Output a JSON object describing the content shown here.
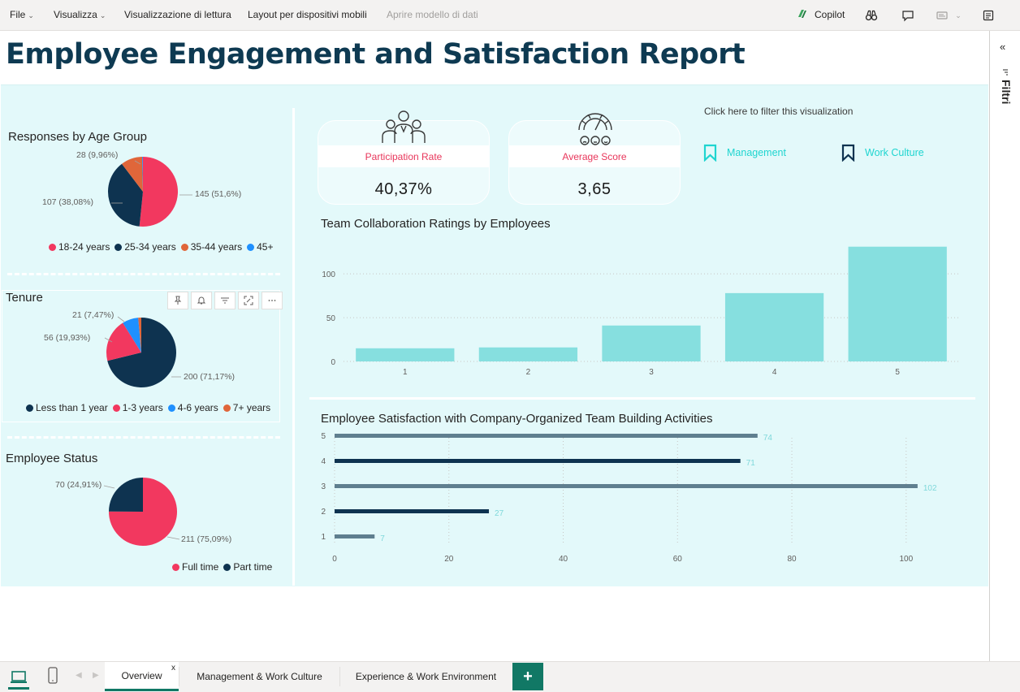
{
  "menu": {
    "file": "File",
    "view": "Visualizza",
    "reading_view": "Visualizzazione di lettura",
    "mobile_layout": "Layout per dispositivi mobili",
    "open_model": "Aprire modello di dati",
    "copilot": "Copilot"
  },
  "report": {
    "title": "Employee Engagement and Satisfaction Report"
  },
  "filters_pane": {
    "label": "Filtri",
    "collapse_glyph": "«"
  },
  "age_chart": {
    "title": "Responses by Age Group",
    "labels": [
      "28 (9,96%)",
      "107 (38,08%)",
      "145 (51,6%)"
    ],
    "legend": [
      "18-24 years",
      "25-34 years",
      "35-44 years",
      "45+"
    ],
    "colors": [
      "#f2385f",
      "#0e3350",
      "#e0663a",
      "#1e90ff"
    ]
  },
  "tenure_chart": {
    "title": "Tenure",
    "labels": [
      "21 (7,47%)",
      "56 (19,93%)",
      "200 (71,17%)"
    ],
    "legend": [
      "Less than 1 year",
      "1-3 years",
      "4-6 years",
      "7+ years"
    ],
    "colors": [
      "#0e3350",
      "#f2385f",
      "#1e90ff",
      "#e0663a"
    ]
  },
  "status_chart": {
    "title": "Employee Status",
    "labels": [
      "70 (24,91%)",
      "211 (75,09%)"
    ],
    "legend": [
      "Full time",
      "Part time"
    ],
    "colors": [
      "#f2385f",
      "#0e3350"
    ]
  },
  "kpis": {
    "participation_label": "Participation Rate",
    "participation_value": "40,37%",
    "average_label": "Average Score",
    "average_value": "3,65"
  },
  "filter_hint": "Click here to filter this visualization",
  "bookmarks": {
    "management": "Management",
    "work_culture": "Work Culture",
    "management_color": "#1fd5d0",
    "work_culture_color": "#0e3350"
  },
  "chart_data": [
    {
      "type": "bar",
      "title": "Team Collaboration Ratings by Employees",
      "categories": [
        "1",
        "2",
        "3",
        "4",
        "5"
      ],
      "values": [
        15,
        16,
        41,
        78,
        131
      ],
      "ylim": [
        0,
        140
      ],
      "yticks": [
        "0",
        "50",
        "100"
      ],
      "color": "#86dfdf",
      "grid": true
    },
    {
      "type": "bar",
      "orientation": "horizontal",
      "title": "Employee Satisfaction with Company-Organized Team Building Activities",
      "categories": [
        "1",
        "2",
        "3",
        "4",
        "5"
      ],
      "values": [
        7,
        27,
        102,
        71,
        74
      ],
      "data_labels": [
        "7",
        "27",
        "102",
        "71",
        "74"
      ],
      "xlim": [
        0,
        105
      ],
      "xticks": [
        "0",
        "20",
        "40",
        "60",
        "80",
        "100"
      ],
      "colors": [
        "#5f7f8f",
        "#0e3350",
        "#5f7f8f",
        "#0e3350",
        "#5f7f8f"
      ],
      "grid": true
    }
  ],
  "tabs": {
    "overview": "Overview",
    "close_glyph": "x",
    "management": "Management & Work Culture",
    "experience": "Experience & Work Environment",
    "add": "+"
  }
}
